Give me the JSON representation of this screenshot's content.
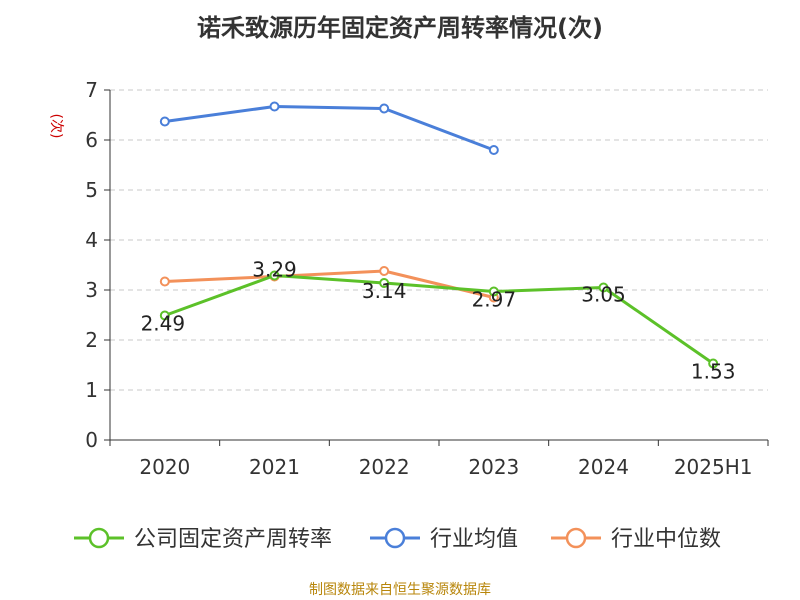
{
  "title": "诺禾致源历年固定资产周转率情况(次)",
  "source": "制图数据来自恒生聚源数据库",
  "chart_data": {
    "type": "line",
    "title": "诺禾致源历年固定资产周转率情况(次)",
    "xlabel": "",
    "ylabel": "(次)",
    "categories": [
      "2020",
      "2021",
      "2022",
      "2023",
      "2024",
      "2025H1"
    ],
    "yticks": [
      "0",
      "1",
      "2",
      "3",
      "4",
      "5",
      "6",
      "7"
    ],
    "ylim": [
      0,
      7
    ],
    "grid": true,
    "legend_position": "bottom",
    "series": [
      {
        "name": "公司固定资产周转率",
        "color": "#5cc129",
        "values": [
          2.49,
          3.29,
          3.14,
          2.97,
          3.05,
          1.53
        ],
        "labels": [
          "2.49",
          "3.29",
          "3.14",
          "2.97",
          "3.05",
          "1.53"
        ]
      },
      {
        "name": "行业均值",
        "color": "#4a7fd9",
        "values": [
          6.37,
          6.67,
          6.63,
          5.8,
          null,
          null
        ],
        "labels": null
      },
      {
        "name": "行业中位数",
        "color": "#f3915a",
        "values": [
          3.17,
          3.27,
          3.38,
          2.85,
          null,
          null
        ],
        "labels": null
      }
    ]
  }
}
